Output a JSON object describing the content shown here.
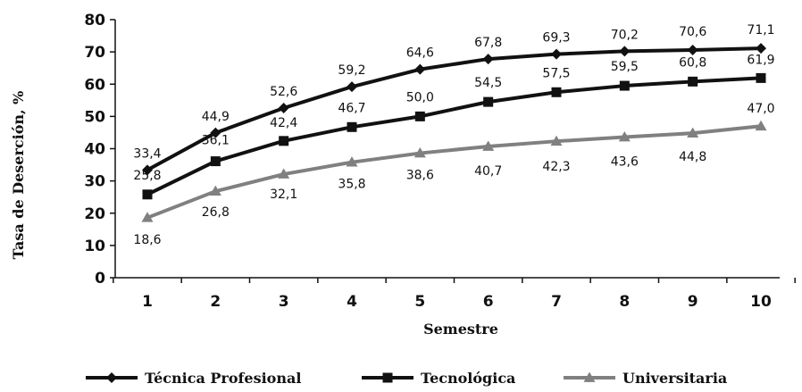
{
  "chart_data": {
    "type": "line",
    "title": "",
    "xlabel": "Semestre",
    "ylabel": "Tasa de Deserción, %",
    "categories": [
      "1",
      "2",
      "3",
      "4",
      "5",
      "6",
      "7",
      "8",
      "9",
      "10"
    ],
    "ylim": [
      0,
      80
    ],
    "yticks": [
      "0",
      "10",
      "20",
      "30",
      "40",
      "50",
      "60",
      "70",
      "80"
    ],
    "grid": false,
    "legend_position": "bottom",
    "series": [
      {
        "name": "Técnica Profesional",
        "marker": "diamond",
        "color": "#111111",
        "values": [
          33.4,
          44.9,
          52.6,
          59.2,
          64.6,
          67.8,
          69.3,
          70.2,
          70.6,
          71.1
        ],
        "labels": [
          "33,4",
          "44,9",
          "52,6",
          "59,2",
          "64,6",
          "67,8",
          "69,3",
          "70,2",
          "70,6",
          "71,1"
        ]
      },
      {
        "name": "Tecnológica",
        "marker": "square",
        "color": "#111111",
        "values": [
          25.8,
          36.1,
          42.4,
          46.7,
          50.0,
          54.5,
          57.5,
          59.5,
          60.8,
          61.9
        ],
        "labels": [
          "25,8",
          "36,1",
          "42,4",
          "46,7",
          "50,0",
          "54,5",
          "57,5",
          "59,5",
          "60,8",
          "61,9"
        ]
      },
      {
        "name": "Universitaria",
        "marker": "triangle",
        "color": "#808080",
        "values": [
          18.6,
          26.8,
          32.1,
          35.8,
          38.6,
          40.7,
          42.3,
          43.6,
          44.8,
          47.0
        ],
        "labels": [
          "18,6",
          "26,8",
          "32,1",
          "35,8",
          "38,6",
          "40,7",
          "42,3",
          "43,6",
          "44,8",
          "47,0"
        ]
      }
    ]
  }
}
